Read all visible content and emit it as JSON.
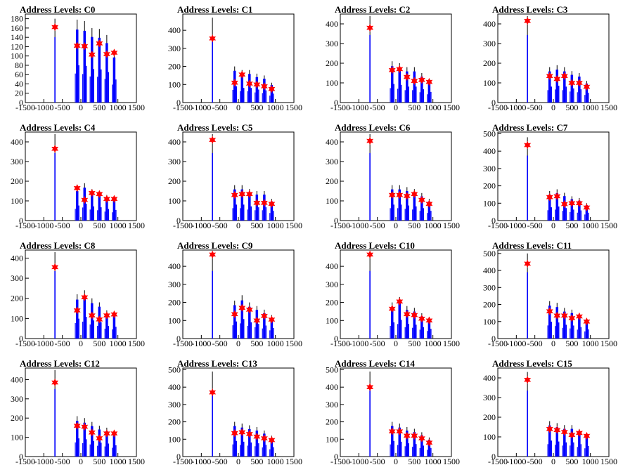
{
  "chart_data": [
    {
      "type": "histogram",
      "title": "Address Levels: C0",
      "xlim": [
        -1500,
        1500
      ],
      "ylim": [
        0,
        190
      ],
      "yticks": [
        0,
        20,
        40,
        60,
        80,
        100,
        120,
        140,
        160,
        180
      ],
      "xticks": [
        -1500,
        -1000,
        -500,
        0,
        500,
        1000,
        1500
      ],
      "peaks": [
        {
          "x": -700,
          "h": 180,
          "marker": 162
        },
        {
          "x": -100,
          "h": 178,
          "marker": 122
        },
        {
          "x": 100,
          "h": 175,
          "marker": 121
        },
        {
          "x": 300,
          "h": 160,
          "marker": 103
        },
        {
          "x": 500,
          "h": 158,
          "marker": 127
        },
        {
          "x": 700,
          "h": 145,
          "marker": 104
        },
        {
          "x": 900,
          "h": 110,
          "marker": 107
        }
      ]
    },
    {
      "type": "histogram",
      "title": "Address Levels: C1",
      "xlim": [
        -1500,
        1500
      ],
      "ylim": [
        0,
        490
      ],
      "yticks": [
        0,
        100,
        200,
        300,
        400
      ],
      "xticks": [
        -1500,
        -1000,
        -500,
        0,
        500,
        1000,
        1500
      ],
      "peaks": [
        {
          "x": -700,
          "h": 470,
          "marker": 355
        },
        {
          "x": -100,
          "h": 200,
          "marker": 110
        },
        {
          "x": 100,
          "h": 180,
          "marker": 155
        },
        {
          "x": 300,
          "h": 180,
          "marker": 105
        },
        {
          "x": 500,
          "h": 160,
          "marker": 100
        },
        {
          "x": 700,
          "h": 150,
          "marker": 90
        },
        {
          "x": 900,
          "h": 110,
          "marker": 75
        }
      ]
    },
    {
      "type": "histogram",
      "title": "Address Levels: C2",
      "xlim": [
        -1500,
        1500
      ],
      "ylim": [
        0,
        450
      ],
      "yticks": [
        0,
        100,
        200,
        300,
        400
      ],
      "xticks": [
        -1500,
        -1000,
        -500,
        0,
        500,
        1000,
        1500
      ],
      "peaks": [
        {
          "x": -700,
          "h": 440,
          "marker": 380
        },
        {
          "x": -100,
          "h": 210,
          "marker": 165
        },
        {
          "x": 100,
          "h": 200,
          "marker": 170
        },
        {
          "x": 300,
          "h": 180,
          "marker": 130
        },
        {
          "x": 500,
          "h": 180,
          "marker": 110
        },
        {
          "x": 700,
          "h": 150,
          "marker": 115
        },
        {
          "x": 900,
          "h": 120,
          "marker": 105
        }
      ]
    },
    {
      "type": "histogram",
      "title": "Address Levels: C3",
      "xlim": [
        -1500,
        1500
      ],
      "ylim": [
        0,
        450
      ],
      "yticks": [
        0,
        100,
        200,
        300,
        400
      ],
      "xticks": [
        -1500,
        -1000,
        -500,
        0,
        500,
        1000,
        1500
      ],
      "peaks": [
        {
          "x": -700,
          "h": 440,
          "marker": 415
        },
        {
          "x": -100,
          "h": 180,
          "marker": 135
        },
        {
          "x": 100,
          "h": 190,
          "marker": 120
        },
        {
          "x": 300,
          "h": 180,
          "marker": 135
        },
        {
          "x": 500,
          "h": 160,
          "marker": 100
        },
        {
          "x": 700,
          "h": 150,
          "marker": 100
        },
        {
          "x": 900,
          "h": 110,
          "marker": 80
        }
      ]
    },
    {
      "type": "histogram",
      "title": "Address Levels: C4",
      "xlim": [
        -1500,
        1500
      ],
      "ylim": [
        0,
        450
      ],
      "yticks": [
        0,
        100,
        200,
        300,
        400
      ],
      "xticks": [
        -1500,
        -1000,
        -500,
        0,
        500,
        1000,
        1500
      ],
      "peaks": [
        {
          "x": -700,
          "h": 440,
          "marker": 365
        },
        {
          "x": -100,
          "h": 170,
          "marker": 165
        },
        {
          "x": 100,
          "h": 190,
          "marker": 105
        },
        {
          "x": 300,
          "h": 160,
          "marker": 140
        },
        {
          "x": 500,
          "h": 150,
          "marker": 135
        },
        {
          "x": 700,
          "h": 130,
          "marker": 110
        },
        {
          "x": 900,
          "h": 120,
          "marker": 110
        }
      ]
    },
    {
      "type": "histogram",
      "title": "Address Levels: C5",
      "xlim": [
        -1500,
        1500
      ],
      "ylim": [
        0,
        450
      ],
      "yticks": [
        0,
        100,
        200,
        300,
        400
      ],
      "xticks": [
        -1500,
        -1000,
        -500,
        0,
        500,
        1000,
        1500
      ],
      "peaks": [
        {
          "x": -700,
          "h": 440,
          "marker": 410
        },
        {
          "x": -100,
          "h": 180,
          "marker": 130
        },
        {
          "x": 100,
          "h": 180,
          "marker": 135
        },
        {
          "x": 300,
          "h": 160,
          "marker": 135
        },
        {
          "x": 500,
          "h": 150,
          "marker": 90
        },
        {
          "x": 700,
          "h": 150,
          "marker": 90
        },
        {
          "x": 900,
          "h": 110,
          "marker": 85
        }
      ]
    },
    {
      "type": "histogram",
      "title": "Address Levels: C6",
      "xlim": [
        -1500,
        1500
      ],
      "ylim": [
        0,
        450
      ],
      "yticks": [
        0,
        100,
        200,
        300,
        400
      ],
      "xticks": [
        -1500,
        -1000,
        -500,
        0,
        500,
        1000,
        1500
      ],
      "peaks": [
        {
          "x": -700,
          "h": 440,
          "marker": 405
        },
        {
          "x": -100,
          "h": 180,
          "marker": 130
        },
        {
          "x": 100,
          "h": 180,
          "marker": 130
        },
        {
          "x": 300,
          "h": 170,
          "marker": 125
        },
        {
          "x": 500,
          "h": 160,
          "marker": 135
        },
        {
          "x": 700,
          "h": 140,
          "marker": 105
        },
        {
          "x": 900,
          "h": 110,
          "marker": 85
        }
      ]
    },
    {
      "type": "histogram",
      "title": "Address Levels: C7",
      "xlim": [
        -1500,
        1500
      ],
      "ylim": [
        0,
        510
      ],
      "yticks": [
        0,
        100,
        200,
        300,
        400,
        500
      ],
      "xticks": [
        -1500,
        -1000,
        -500,
        0,
        500,
        1000,
        1500
      ],
      "peaks": [
        {
          "x": -700,
          "h": 480,
          "marker": 435
        },
        {
          "x": -100,
          "h": 170,
          "marker": 135
        },
        {
          "x": 100,
          "h": 180,
          "marker": 140
        },
        {
          "x": 300,
          "h": 160,
          "marker": 95
        },
        {
          "x": 500,
          "h": 140,
          "marker": 100
        },
        {
          "x": 700,
          "h": 130,
          "marker": 100
        },
        {
          "x": 900,
          "h": 100,
          "marker": 75
        }
      ]
    },
    {
      "type": "histogram",
      "title": "Address Levels: C8",
      "xlim": [
        -1500,
        1500
      ],
      "ylim": [
        0,
        440
      ],
      "yticks": [
        0,
        100,
        200,
        300,
        400
      ],
      "xticks": [
        -1500,
        -1000,
        -500,
        0,
        500,
        1000,
        1500
      ],
      "peaks": [
        {
          "x": -700,
          "h": 430,
          "marker": 355
        },
        {
          "x": -100,
          "h": 220,
          "marker": 140
        },
        {
          "x": 100,
          "h": 240,
          "marker": 205
        },
        {
          "x": 300,
          "h": 200,
          "marker": 115
        },
        {
          "x": 500,
          "h": 180,
          "marker": 95
        },
        {
          "x": 700,
          "h": 140,
          "marker": 115
        },
        {
          "x": 900,
          "h": 130,
          "marker": 120
        }
      ]
    },
    {
      "type": "histogram",
      "title": "Address Levels: C9",
      "xlim": [
        -1500,
        1500
      ],
      "ylim": [
        0,
        490
      ],
      "yticks": [
        0,
        100,
        200,
        300,
        400
      ],
      "xticks": [
        -1500,
        -1000,
        -500,
        0,
        500,
        1000,
        1500
      ],
      "peaks": [
        {
          "x": -700,
          "h": 480,
          "marker": 465
        },
        {
          "x": -100,
          "h": 210,
          "marker": 135
        },
        {
          "x": 100,
          "h": 240,
          "marker": 170
        },
        {
          "x": 300,
          "h": 200,
          "marker": 160
        },
        {
          "x": 500,
          "h": 180,
          "marker": 100
        },
        {
          "x": 700,
          "h": 160,
          "marker": 125
        },
        {
          "x": 900,
          "h": 130,
          "marker": 105
        }
      ]
    },
    {
      "type": "histogram",
      "title": "Address Levels: C10",
      "xlim": [
        -1500,
        1500
      ],
      "ylim": [
        0,
        490
      ],
      "yticks": [
        0,
        100,
        200,
        300,
        400
      ],
      "xticks": [
        -1500,
        -1000,
        -500,
        0,
        500,
        1000,
        1500
      ],
      "peaks": [
        {
          "x": -700,
          "h": 480,
          "marker": 465
        },
        {
          "x": -100,
          "h": 200,
          "marker": 165
        },
        {
          "x": 100,
          "h": 230,
          "marker": 205
        },
        {
          "x": 300,
          "h": 180,
          "marker": 135
        },
        {
          "x": 500,
          "h": 170,
          "marker": 130
        },
        {
          "x": 700,
          "h": 140,
          "marker": 110
        },
        {
          "x": 900,
          "h": 120,
          "marker": 100
        }
      ]
    },
    {
      "type": "histogram",
      "title": "Address Levels: C11",
      "xlim": [
        -1500,
        1500
      ],
      "ylim": [
        0,
        520
      ],
      "yticks": [
        0,
        100,
        200,
        300,
        400,
        500
      ],
      "xticks": [
        -1500,
        -1000,
        -500,
        0,
        500,
        1000,
        1500
      ],
      "peaks": [
        {
          "x": -700,
          "h": 500,
          "marker": 440
        },
        {
          "x": -100,
          "h": 220,
          "marker": 160
        },
        {
          "x": 100,
          "h": 210,
          "marker": 135
        },
        {
          "x": 300,
          "h": 180,
          "marker": 135
        },
        {
          "x": 500,
          "h": 170,
          "marker": 120
        },
        {
          "x": 700,
          "h": 150,
          "marker": 130
        },
        {
          "x": 900,
          "h": 120,
          "marker": 100
        }
      ]
    },
    {
      "type": "histogram",
      "title": "Address Levels: C12",
      "xlim": [
        -1500,
        1500
      ],
      "ylim": [
        0,
        460
      ],
      "yticks": [
        0,
        100,
        200,
        300,
        400
      ],
      "xticks": [
        -1500,
        -1000,
        -500,
        0,
        500,
        1000,
        1500
      ],
      "peaks": [
        {
          "x": -700,
          "h": 450,
          "marker": 385
        },
        {
          "x": -100,
          "h": 210,
          "marker": 160
        },
        {
          "x": 100,
          "h": 200,
          "marker": 155
        },
        {
          "x": 300,
          "h": 180,
          "marker": 125
        },
        {
          "x": 500,
          "h": 160,
          "marker": 95
        },
        {
          "x": 700,
          "h": 150,
          "marker": 120
        },
        {
          "x": 900,
          "h": 130,
          "marker": 120
        }
      ]
    },
    {
      "type": "histogram",
      "title": "Address Levels: C13",
      "xlim": [
        -1500,
        1500
      ],
      "ylim": [
        0,
        510
      ],
      "yticks": [
        0,
        100,
        200,
        300,
        400,
        500
      ],
      "xticks": [
        -1500,
        -1000,
        -500,
        0,
        500,
        1000,
        1500
      ],
      "peaks": [
        {
          "x": -700,
          "h": 490,
          "marker": 370
        },
        {
          "x": -100,
          "h": 200,
          "marker": 135
        },
        {
          "x": 100,
          "h": 190,
          "marker": 140
        },
        {
          "x": 300,
          "h": 180,
          "marker": 130
        },
        {
          "x": 500,
          "h": 170,
          "marker": 115
        },
        {
          "x": 700,
          "h": 150,
          "marker": 105
        },
        {
          "x": 900,
          "h": 120,
          "marker": 95
        }
      ]
    },
    {
      "type": "histogram",
      "title": "Address Levels: C14",
      "xlim": [
        -1500,
        1500
      ],
      "ylim": [
        0,
        510
      ],
      "yticks": [
        0,
        100,
        200,
        300,
        400,
        500
      ],
      "xticks": [
        -1500,
        -1000,
        -500,
        0,
        500,
        1000,
        1500
      ],
      "peaks": [
        {
          "x": -700,
          "h": 490,
          "marker": 400
        },
        {
          "x": -100,
          "h": 200,
          "marker": 145
        },
        {
          "x": 100,
          "h": 190,
          "marker": 145
        },
        {
          "x": 300,
          "h": 170,
          "marker": 120
        },
        {
          "x": 500,
          "h": 160,
          "marker": 120
        },
        {
          "x": 700,
          "h": 140,
          "marker": 105
        },
        {
          "x": 900,
          "h": 110,
          "marker": 80
        }
      ]
    },
    {
      "type": "histogram",
      "title": "Address Levels: C15",
      "xlim": [
        -1500,
        1500
      ],
      "ylim": [
        0,
        450
      ],
      "yticks": [
        0,
        100,
        200,
        300,
        400
      ],
      "xticks": [
        -1500,
        -1000,
        -500,
        0,
        500,
        1000,
        1500
      ],
      "peaks": [
        {
          "x": -700,
          "h": 430,
          "marker": 390
        },
        {
          "x": -100,
          "h": 180,
          "marker": 140
        },
        {
          "x": 100,
          "h": 170,
          "marker": 135
        },
        {
          "x": 300,
          "h": 160,
          "marker": 125
        },
        {
          "x": 500,
          "h": 160,
          "marker": 110
        },
        {
          "x": 700,
          "h": 140,
          "marker": 120
        },
        {
          "x": 900,
          "h": 120,
          "marker": 105
        }
      ]
    }
  ],
  "colors": {
    "hist": "#0000ff",
    "spike": "#000000",
    "marker": "#ff0000",
    "axis": "#000000"
  }
}
